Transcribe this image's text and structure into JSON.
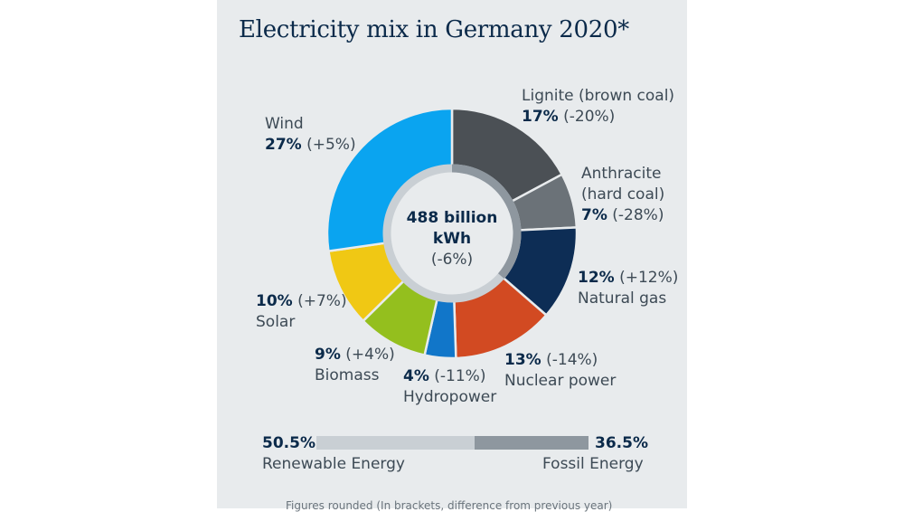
{
  "title": "Electricity mix in Germany 2020*",
  "center": {
    "value": "488 billion",
    "unit": "kWh",
    "change": "(-6%)"
  },
  "chart_data": {
    "type": "pie",
    "title": "Electricity mix in Germany 2020*",
    "total": "488 billion kWh (-6%)",
    "slices": [
      {
        "name": "Lignite (brown coal)",
        "pct_label": "17%",
        "change": "(-20%)",
        "value": 17,
        "color": "#4b5055"
      },
      {
        "name": "Anthracite (hard coal)",
        "pct_label": "7%",
        "change": "(-28%)",
        "value": 7,
        "color": "#6b7278"
      },
      {
        "name": "Natural gas",
        "pct_label": "12%",
        "change": "(+12%)",
        "value": 12,
        "color": "#0d2d55"
      },
      {
        "name": "Nuclear power",
        "pct_label": "13%",
        "change": "(-14%)",
        "value": 13,
        "color": "#d24a22"
      },
      {
        "name": "Hydropower",
        "pct_label": "4%",
        "change": "(-11%)",
        "value": 4,
        "color": "#1176c9"
      },
      {
        "name": "Biomass",
        "pct_label": "9%",
        "change": "(+4%)",
        "value": 9,
        "color": "#94bf1e"
      },
      {
        "name": "Solar",
        "pct_label": "10%",
        "change": "(+7%)",
        "value": 10,
        "color": "#f0c814"
      },
      {
        "name": "Wind",
        "pct_label": "27%",
        "change": "(+5%)",
        "value": 27,
        "color": "#0aa4f0"
      }
    ],
    "summary": [
      {
        "name": "Renewable Energy",
        "value": 50.5,
        "label": "50.5%"
      },
      {
        "name": "Fossil Energy",
        "value": 36.5,
        "label": "36.5%"
      }
    ]
  },
  "footnote": "Figures rounded (In brackets, difference from previous year)"
}
